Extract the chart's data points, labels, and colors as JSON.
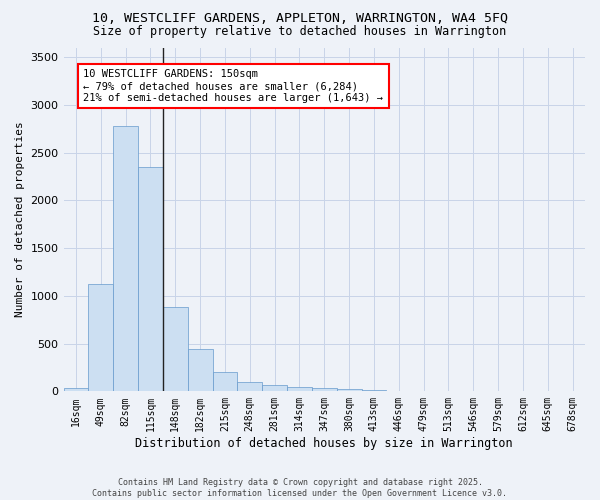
{
  "title_line1": "10, WESTCLIFF GARDENS, APPLETON, WARRINGTON, WA4 5FQ",
  "title_line2": "Size of property relative to detached houses in Warrington",
  "xlabel": "Distribution of detached houses by size in Warrington",
  "ylabel": "Number of detached properties",
  "bar_color": "#ccdff2",
  "bar_edge_color": "#6699cc",
  "categories": [
    "16sqm",
    "49sqm",
    "82sqm",
    "115sqm",
    "148sqm",
    "182sqm",
    "215sqm",
    "248sqm",
    "281sqm",
    "314sqm",
    "347sqm",
    "380sqm",
    "413sqm",
    "446sqm",
    "479sqm",
    "513sqm",
    "546sqm",
    "579sqm",
    "612sqm",
    "645sqm",
    "678sqm"
  ],
  "values": [
    40,
    1120,
    2780,
    2350,
    880,
    440,
    200,
    100,
    70,
    50,
    30,
    20,
    10,
    5,
    3,
    2,
    1,
    1,
    0,
    0,
    0
  ],
  "ylim": [
    0,
    3600
  ],
  "yticks": [
    0,
    500,
    1000,
    1500,
    2000,
    2500,
    3000,
    3500
  ],
  "annotation_line1": "10 WESTCLIFF GARDENS: 150sqm",
  "annotation_line2": "← 79% of detached houses are smaller (6,284)",
  "annotation_line3": "21% of semi-detached houses are larger (1,643) →",
  "footer_line1": "Contains HM Land Registry data © Crown copyright and database right 2025.",
  "footer_line2": "Contains public sector information licensed under the Open Government Licence v3.0.",
  "background_color": "#eef2f8",
  "plot_bg_color": "#eef2f8",
  "grid_color": "#c8d4e8"
}
